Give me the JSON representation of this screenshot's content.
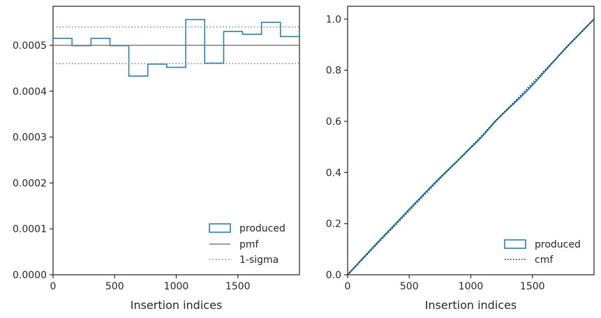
{
  "chart_data": [
    {
      "type": "step",
      "title": "",
      "xlabel": "Insertion indices",
      "ylabel": "",
      "xlim": [
        0,
        2000
      ],
      "ylim": [
        0,
        0.000585
      ],
      "xticks": [
        0,
        500,
        1000,
        1500
      ],
      "yticks": [
        0.0,
        0.0001,
        0.0002,
        0.0003,
        0.0004,
        0.0005
      ],
      "ytick_labels": [
        "0.0000",
        "0.0001",
        "0.0002",
        "0.0003",
        "0.0004",
        "0.0005"
      ],
      "grid": false,
      "legend_position": "lower-right",
      "bin_edges": [
        0,
        154,
        308,
        462,
        615,
        769,
        923,
        1077,
        1231,
        1385,
        1538,
        1692,
        1846,
        2000
      ],
      "series": [
        {
          "name": "produced",
          "kind": "histogram-step",
          "color": "#2e7fb0",
          "values": [
            0.000515,
            0.000499,
            0.000515,
            0.000499,
            0.000433,
            0.000459,
            0.000452,
            0.000556,
            0.000461,
            0.00053,
            0.000524,
            0.00055,
            0.000519
          ]
        },
        {
          "name": "pmf",
          "kind": "hline",
          "color": "#7f7f7f",
          "style": "solid",
          "value": 0.0005
        },
        {
          "name": "1-sigma",
          "kind": "hline-pair",
          "color": "#7f7f7f",
          "style": "dotted",
          "values": [
            0.00046,
            0.00054
          ]
        }
      ]
    },
    {
      "type": "line",
      "title": "",
      "xlabel": "Insertion indices",
      "ylabel": "",
      "xlim": [
        0,
        2000
      ],
      "ylim": [
        0,
        1.05
      ],
      "xticks": [
        0,
        500,
        1000,
        1500
      ],
      "yticks": [
        0.0,
        0.2,
        0.4,
        0.6,
        0.8,
        1.0
      ],
      "ytick_labels": [
        "0.0",
        "0.2",
        "0.4",
        "0.6",
        "0.8",
        "1.0"
      ],
      "grid": false,
      "legend_position": "lower-right",
      "series": [
        {
          "name": "produced",
          "kind": "cdf",
          "color": "#2e7fb0",
          "x": [
            0,
            50,
            100,
            150,
            200,
            250,
            300,
            350,
            400,
            450,
            500,
            550,
            600,
            650,
            700,
            750,
            800,
            850,
            900,
            950,
            1000,
            1050,
            1100,
            1150,
            1200,
            1250,
            1300,
            1350,
            1400,
            1450,
            1500,
            1550,
            1600,
            1650,
            1700,
            1750,
            1800,
            1850,
            1900,
            1950,
            2000
          ],
          "y": [
            0.0,
            0.026,
            0.052,
            0.078,
            0.104,
            0.13,
            0.155,
            0.18,
            0.205,
            0.23,
            0.256,
            0.281,
            0.306,
            0.331,
            0.356,
            0.38,
            0.403,
            0.426,
            0.449,
            0.473,
            0.497,
            0.52,
            0.545,
            0.573,
            0.601,
            0.625,
            0.648,
            0.67,
            0.693,
            0.717,
            0.742,
            0.768,
            0.795,
            0.822,
            0.849,
            0.876,
            0.902,
            0.926,
            0.951,
            0.975,
            1.0
          ]
        },
        {
          "name": "cmf",
          "kind": "line",
          "color": "#111111",
          "style": "dotted",
          "x": [
            0,
            2000
          ],
          "y": [
            0.0,
            1.0
          ]
        }
      ]
    }
  ]
}
